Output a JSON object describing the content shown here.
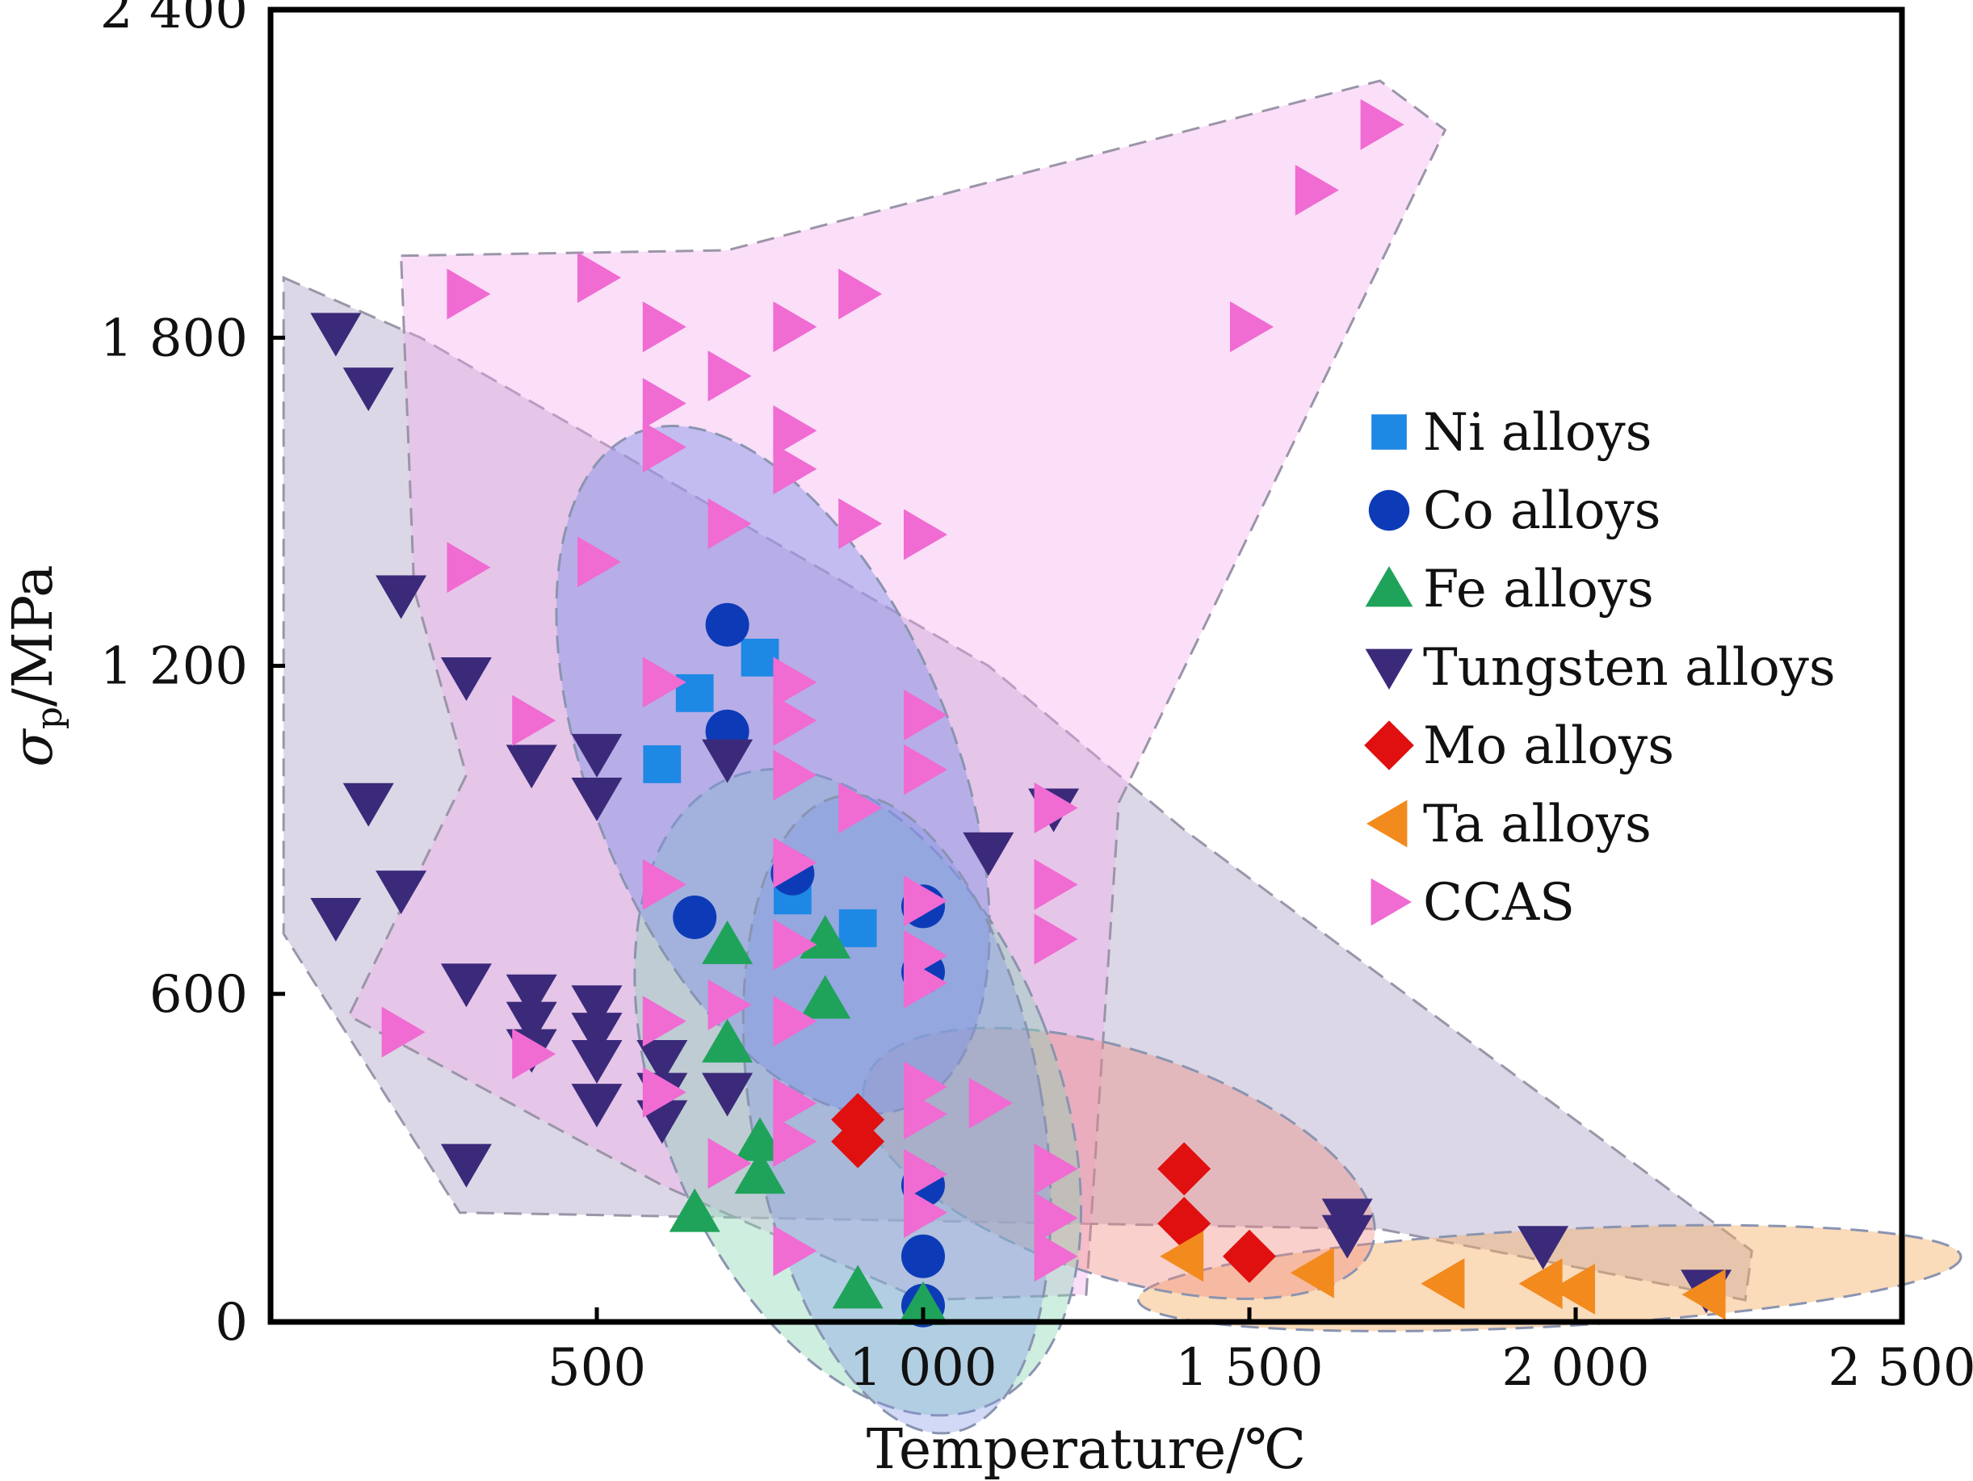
{
  "chart_data": {
    "type": "scatter",
    "title": "",
    "xlabel": "Temperature/℃",
    "ylabel_symbol": "σ",
    "ylabel_subscript": "p",
    "ylabel_unit": "/MPa",
    "xlim": [
      0,
      2500
    ],
    "ylim": [
      0,
      2400
    ],
    "xticks": [
      500,
      1000,
      1500,
      2000,
      2500
    ],
    "yticks": [
      0,
      600,
      1200,
      1800,
      2400
    ],
    "xtick_labels": [
      "500",
      "1 000",
      "1 500",
      "2 000",
      "2 500"
    ],
    "ytick_labels": [
      "0",
      "600",
      "1 200",
      "1 800",
      "2 400"
    ],
    "grid": false,
    "legend_position": "right",
    "series": [
      {
        "name": "Ni alloys",
        "marker": "square",
        "color": "#1E88E5",
        "points": [
          [
            650,
            1150
          ],
          [
            750,
            1215
          ],
          [
            600,
            1020
          ],
          [
            800,
            780
          ],
          [
            900,
            720
          ]
        ]
      },
      {
        "name": "Co alloys",
        "marker": "circle",
        "color": "#0D3BB8",
        "points": [
          [
            700,
            1275
          ],
          [
            700,
            1080
          ],
          [
            650,
            740
          ],
          [
            800,
            820
          ],
          [
            1000,
            760
          ],
          [
            1000,
            640
          ],
          [
            1000,
            250
          ],
          [
            1000,
            120
          ],
          [
            1000,
            30
          ]
        ]
      },
      {
        "name": "Fe alloys",
        "marker": "triangle-up",
        "color": "#1FA35A",
        "points": [
          [
            700,
            690
          ],
          [
            850,
            700
          ],
          [
            850,
            590
          ],
          [
            700,
            510
          ],
          [
            750,
            330
          ],
          [
            750,
            270
          ],
          [
            650,
            200
          ],
          [
            900,
            60
          ],
          [
            1000,
            30
          ]
        ]
      },
      {
        "name": "Tungsten alloys",
        "marker": "triangle-down",
        "color": "#3B2A7A",
        "points": [
          [
            100,
            1810
          ],
          [
            150,
            1710
          ],
          [
            200,
            1330
          ],
          [
            300,
            1180
          ],
          [
            400,
            1020
          ],
          [
            500,
            1040
          ],
          [
            500,
            960
          ],
          [
            700,
            1030
          ],
          [
            150,
            950
          ],
          [
            200,
            790
          ],
          [
            100,
            740
          ],
          [
            300,
            620
          ],
          [
            400,
            600
          ],
          [
            400,
            550
          ],
          [
            400,
            500
          ],
          [
            500,
            580
          ],
          [
            500,
            530
          ],
          [
            500,
            480
          ],
          [
            500,
            400
          ],
          [
            600,
            480
          ],
          [
            600,
            420
          ],
          [
            600,
            370
          ],
          [
            700,
            420
          ],
          [
            300,
            290
          ],
          [
            1100,
            860
          ],
          [
            1200,
            940
          ],
          [
            1650,
            190
          ],
          [
            1650,
            160
          ],
          [
            1950,
            140
          ],
          [
            2200,
            60
          ]
        ]
      },
      {
        "name": "Mo alloys",
        "marker": "diamond",
        "color": "#E01010",
        "points": [
          [
            900,
            370
          ],
          [
            900,
            330
          ],
          [
            1400,
            280
          ],
          [
            1400,
            180
          ],
          [
            1500,
            120
          ]
        ]
      },
      {
        "name": "Ta alloys",
        "marker": "triangle-left",
        "color": "#F28A1E",
        "points": [
          [
            1400,
            120
          ],
          [
            1600,
            90
          ],
          [
            1800,
            70
          ],
          [
            1950,
            70
          ],
          [
            2000,
            60
          ],
          [
            2200,
            50
          ]
        ]
      },
      {
        "name": "CCAS",
        "marker": "triangle-right",
        "color": "#F06BD2",
        "points": [
          [
            300,
            1880
          ],
          [
            500,
            1910
          ],
          [
            600,
            1820
          ],
          [
            700,
            1730
          ],
          [
            800,
            1820
          ],
          [
            900,
            1880
          ],
          [
            600,
            1680
          ],
          [
            600,
            1600
          ],
          [
            800,
            1630
          ],
          [
            800,
            1560
          ],
          [
            700,
            1460
          ],
          [
            900,
            1460
          ],
          [
            1000,
            1440
          ],
          [
            300,
            1380
          ],
          [
            500,
            1390
          ],
          [
            1500,
            1820
          ],
          [
            1600,
            2070
          ],
          [
            1700,
            2190
          ],
          [
            600,
            1170
          ],
          [
            400,
            1100
          ],
          [
            800,
            1170
          ],
          [
            800,
            1100
          ],
          [
            800,
            1000
          ],
          [
            900,
            940
          ],
          [
            1000,
            1110
          ],
          [
            1000,
            1010
          ],
          [
            1200,
            940
          ],
          [
            600,
            800
          ],
          [
            800,
            840
          ],
          [
            1000,
            770
          ],
          [
            1200,
            800
          ],
          [
            1200,
            700
          ],
          [
            200,
            530
          ],
          [
            400,
            490
          ],
          [
            600,
            550
          ],
          [
            700,
            580
          ],
          [
            800,
            550
          ],
          [
            800,
            690
          ],
          [
            1000,
            670
          ],
          [
            1000,
            620
          ],
          [
            600,
            420
          ],
          [
            800,
            400
          ],
          [
            700,
            290
          ],
          [
            800,
            330
          ],
          [
            1000,
            430
          ],
          [
            1000,
            380
          ],
          [
            1100,
            400
          ],
          [
            1000,
            270
          ],
          [
            1000,
            200
          ],
          [
            1200,
            280
          ],
          [
            1200,
            190
          ],
          [
            800,
            130
          ],
          [
            1200,
            120
          ]
        ]
      }
    ]
  }
}
